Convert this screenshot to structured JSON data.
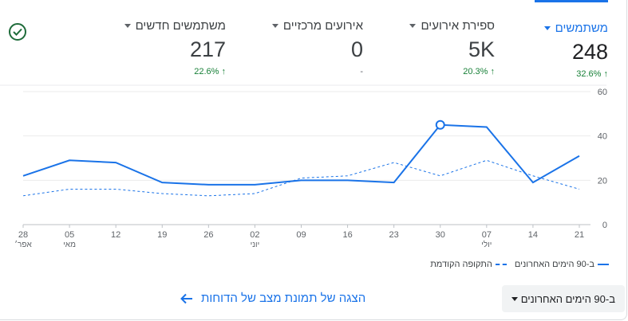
{
  "metrics": [
    {
      "title": "משתמשים",
      "value": "248",
      "change": "32.6%",
      "active": true
    },
    {
      "title": "ספירת אירועים",
      "value": "5K",
      "change": "20.3%"
    },
    {
      "title": "אירועים מרכזיים",
      "value": "0",
      "change": "-"
    },
    {
      "title": "משתמשים חדשים",
      "value": "217",
      "change": "22.6%"
    }
  ],
  "legend": {
    "current": "ב-90 הימים האחרונים",
    "previous": "התקופה הקודמת"
  },
  "footer": {
    "link_label": "הצגה של תמונת מצב של הדוחות",
    "range_label": "ב-90 הימים האחרונים"
  },
  "icons": {
    "status": "check-circle-icon",
    "link": "arrow-left-icon",
    "dropdown": "caret-down-icon"
  },
  "colors": {
    "accent": "#1a73e8",
    "positive": "#188038"
  },
  "chart_data": {
    "type": "line",
    "x": [
      "28",
      "05",
      "12",
      "19",
      "26",
      "02",
      "09",
      "16",
      "23",
      "30",
      "07",
      "14",
      "21"
    ],
    "month_labels": {
      "0": "אפר׳",
      "1": "מאי",
      "5": "יוני",
      "10": "יולי"
    },
    "series": [
      {
        "name": "ב-90 הימים האחרונים",
        "style": "solid",
        "values": [
          22,
          29,
          28,
          19,
          18,
          18,
          20,
          20,
          19,
          45,
          44,
          19,
          31
        ]
      },
      {
        "name": "התקופה הקודמת",
        "style": "dashed",
        "values": [
          13,
          16,
          16,
          14,
          13,
          14,
          21,
          22,
          28,
          22,
          29,
          22,
          16
        ]
      }
    ],
    "highlight_index": 9,
    "yticks": [
      0,
      20,
      40,
      60
    ],
    "ylim": [
      0,
      60
    ],
    "y_axis_side": "right"
  }
}
